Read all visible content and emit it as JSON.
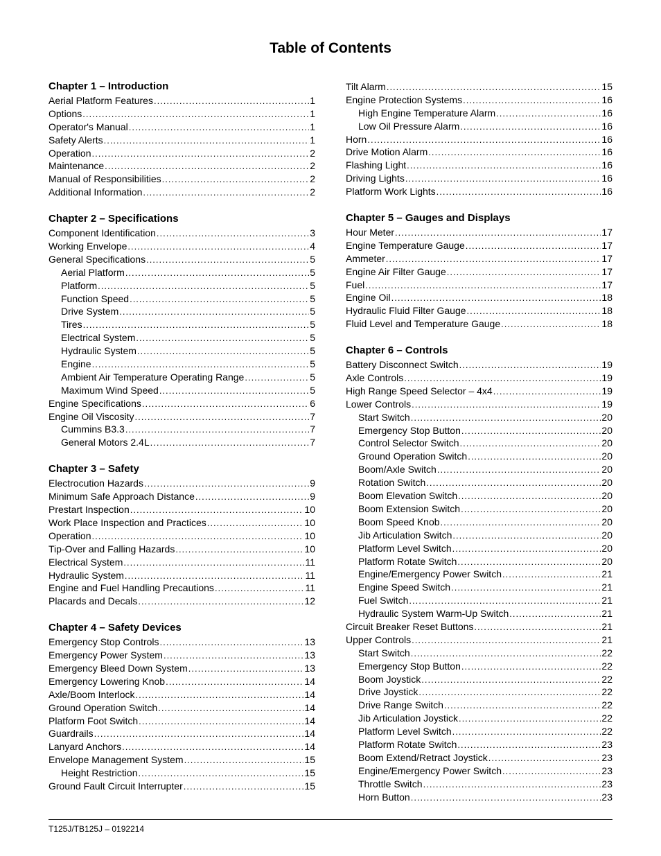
{
  "title": "Table of Contents",
  "footer": "T125J/TB125J – 0192214",
  "left": [
    {
      "type": "heading",
      "text": "Chapter 1 – Introduction",
      "first": true
    },
    {
      "type": "entry",
      "label": "Aerial Platform Features",
      "page": "1",
      "indent": 0
    },
    {
      "type": "entry",
      "label": "Options",
      "page": "1",
      "indent": 0
    },
    {
      "type": "entry",
      "label": "Operator's Manual",
      "page": "1",
      "indent": 0
    },
    {
      "type": "entry",
      "label": "Safety Alerts",
      "page": "1",
      "indent": 0
    },
    {
      "type": "entry",
      "label": "Operation",
      "page": "2",
      "indent": 0
    },
    {
      "type": "entry",
      "label": "Maintenance",
      "page": "2",
      "indent": 0
    },
    {
      "type": "entry",
      "label": "Manual of Responsibilities",
      "page": "2",
      "indent": 0
    },
    {
      "type": "entry",
      "label": "Additional Information",
      "page": "2",
      "indent": 0
    },
    {
      "type": "heading",
      "text": "Chapter 2 – Specifications"
    },
    {
      "type": "entry",
      "label": "Component Identification",
      "page": "3",
      "indent": 0
    },
    {
      "type": "entry",
      "label": "Working Envelope",
      "page": "4",
      "indent": 0
    },
    {
      "type": "entry",
      "label": "General Specifications",
      "page": "5",
      "indent": 0
    },
    {
      "type": "entry",
      "label": "Aerial Platform",
      "page": "5",
      "indent": 1
    },
    {
      "type": "entry",
      "label": "Platform",
      "page": "5",
      "indent": 1
    },
    {
      "type": "entry",
      "label": "Function Speed",
      "page": "5",
      "indent": 1
    },
    {
      "type": "entry",
      "label": "Drive System",
      "page": "5",
      "indent": 1
    },
    {
      "type": "entry",
      "label": "Tires",
      "page": "5",
      "indent": 1
    },
    {
      "type": "entry",
      "label": "Electrical System",
      "page": "5",
      "indent": 1
    },
    {
      "type": "entry",
      "label": "Hydraulic System",
      "page": "5",
      "indent": 1
    },
    {
      "type": "entry",
      "label": "Engine",
      "page": "5",
      "indent": 1
    },
    {
      "type": "entry",
      "label": "Ambient Air Temperature Operating Range",
      "page": "5",
      "indent": 1
    },
    {
      "type": "entry",
      "label": "Maximum Wind Speed",
      "page": "5",
      "indent": 1
    },
    {
      "type": "entry",
      "label": "Engine Specifications",
      "page": "6",
      "indent": 0
    },
    {
      "type": "entry",
      "label": "Engine Oil Viscosity",
      "page": "7",
      "indent": 0
    },
    {
      "type": "entry",
      "label": "Cummins B3.3",
      "page": "7",
      "indent": 1
    },
    {
      "type": "entry",
      "label": "General Motors 2.4L",
      "page": "7",
      "indent": 1
    },
    {
      "type": "heading",
      "text": "Chapter 3 – Safety"
    },
    {
      "type": "entry",
      "label": "Electrocution Hazards",
      "page": "9",
      "indent": 0
    },
    {
      "type": "entry",
      "label": "Minimum Safe Approach Distance",
      "page": "9",
      "indent": 0
    },
    {
      "type": "entry",
      "label": "Prestart Inspection",
      "page": "10",
      "indent": 0
    },
    {
      "type": "entry",
      "label": "Work Place Inspection and Practices",
      "page": "10",
      "indent": 0
    },
    {
      "type": "entry",
      "label": "Operation",
      "page": "10",
      "indent": 0
    },
    {
      "type": "entry",
      "label": "Tip-Over and Falling Hazards",
      "page": "10",
      "indent": 0
    },
    {
      "type": "entry",
      "label": "Electrical System",
      "page": "11",
      "indent": 0
    },
    {
      "type": "entry",
      "label": "Hydraulic System",
      "page": "11",
      "indent": 0
    },
    {
      "type": "entry",
      "label": "Engine and Fuel Handling Precautions",
      "page": "11",
      "indent": 0
    },
    {
      "type": "entry",
      "label": "Placards and Decals",
      "page": "12",
      "indent": 0
    },
    {
      "type": "heading",
      "text": "Chapter 4 – Safety Devices"
    },
    {
      "type": "entry",
      "label": "Emergency Stop Controls",
      "page": "13",
      "indent": 0
    },
    {
      "type": "entry",
      "label": "Emergency Power System",
      "page": "13",
      "indent": 0
    },
    {
      "type": "entry",
      "label": "Emergency Bleed Down System",
      "page": "13",
      "indent": 0
    },
    {
      "type": "entry",
      "label": "Emergency Lowering Knob",
      "page": "14",
      "indent": 0
    },
    {
      "type": "entry",
      "label": "Axle/Boom Interlock",
      "page": "14",
      "indent": 0
    },
    {
      "type": "entry",
      "label": "Ground Operation Switch",
      "page": "14",
      "indent": 0
    },
    {
      "type": "entry",
      "label": "Platform Foot Switch",
      "page": "14",
      "indent": 0
    },
    {
      "type": "entry",
      "label": "Guardrails",
      "page": "14",
      "indent": 0
    },
    {
      "type": "entry",
      "label": "Lanyard Anchors",
      "page": "14",
      "indent": 0
    },
    {
      "type": "entry",
      "label": "Envelope Management System",
      "page": "15",
      "indent": 0
    },
    {
      "type": "entry",
      "label": "Height Restriction",
      "page": "15",
      "indent": 1
    },
    {
      "type": "entry",
      "label": "Ground Fault Circuit Interrupter",
      "page": "15",
      "indent": 0
    }
  ],
  "right": [
    {
      "type": "entry",
      "label": "Tilt Alarm",
      "page": "15",
      "indent": 0
    },
    {
      "type": "entry",
      "label": "Engine Protection Systems",
      "page": "16",
      "indent": 0
    },
    {
      "type": "entry",
      "label": "High Engine Temperature Alarm",
      "page": "16",
      "indent": 1
    },
    {
      "type": "entry",
      "label": "Low Oil Pressure Alarm",
      "page": "16",
      "indent": 1
    },
    {
      "type": "entry",
      "label": "Horn",
      "page": "16",
      "indent": 0
    },
    {
      "type": "entry",
      "label": "Drive Motion Alarm",
      "page": "16",
      "indent": 0
    },
    {
      "type": "entry",
      "label": "Flashing Light",
      "page": "16",
      "indent": 0
    },
    {
      "type": "entry",
      "label": "Driving Lights",
      "page": "16",
      "indent": 0
    },
    {
      "type": "entry",
      "label": "Platform Work Lights",
      "page": "16",
      "indent": 0
    },
    {
      "type": "heading",
      "text": "Chapter 5 – Gauges and Displays"
    },
    {
      "type": "entry",
      "label": "Hour Meter",
      "page": "17",
      "indent": 0
    },
    {
      "type": "entry",
      "label": "Engine Temperature Gauge",
      "page": "17",
      "indent": 0
    },
    {
      "type": "entry",
      "label": "Ammeter",
      "page": "17",
      "indent": 0
    },
    {
      "type": "entry",
      "label": "Engine Air Filter Gauge",
      "page": "17",
      "indent": 0
    },
    {
      "type": "entry",
      "label": "Fuel",
      "page": "17",
      "indent": 0
    },
    {
      "type": "entry",
      "label": "Engine Oil",
      "page": "18",
      "indent": 0
    },
    {
      "type": "entry",
      "label": "Hydraulic Fluid Filter Gauge",
      "page": "18",
      "indent": 0
    },
    {
      "type": "entry",
      "label": "Fluid Level and Temperature Gauge",
      "page": "18",
      "indent": 0
    },
    {
      "type": "heading",
      "text": "Chapter 6 – Controls"
    },
    {
      "type": "entry",
      "label": "Battery Disconnect Switch",
      "page": "19",
      "indent": 0
    },
    {
      "type": "entry",
      "label": "Axle Controls",
      "page": "19",
      "indent": 0
    },
    {
      "type": "entry",
      "label": "High Range Speed Selector – 4x4",
      "page": "19",
      "indent": 0
    },
    {
      "type": "entry",
      "label": "Lower Controls",
      "page": "19",
      "indent": 0
    },
    {
      "type": "entry",
      "label": "Start Switch",
      "page": "20",
      "indent": 1
    },
    {
      "type": "entry",
      "label": "Emergency Stop Button",
      "page": "20",
      "indent": 1
    },
    {
      "type": "entry",
      "label": "Control Selector Switch",
      "page": "20",
      "indent": 1
    },
    {
      "type": "entry",
      "label": "Ground Operation Switch",
      "page": "20",
      "indent": 1
    },
    {
      "type": "entry",
      "label": "Boom/Axle Switch",
      "page": "20",
      "indent": 1
    },
    {
      "type": "entry",
      "label": "Rotation Switch",
      "page": "20",
      "indent": 1
    },
    {
      "type": "entry",
      "label": "Boom Elevation Switch",
      "page": "20",
      "indent": 1
    },
    {
      "type": "entry",
      "label": "Boom Extension Switch",
      "page": "20",
      "indent": 1
    },
    {
      "type": "entry",
      "label": "Boom Speed Knob",
      "page": "20",
      "indent": 1
    },
    {
      "type": "entry",
      "label": "Jib Articulation Switch",
      "page": "20",
      "indent": 1
    },
    {
      "type": "entry",
      "label": "Platform Level Switch",
      "page": "20",
      "indent": 1
    },
    {
      "type": "entry",
      "label": "Platform Rotate Switch",
      "page": "20",
      "indent": 1
    },
    {
      "type": "entry",
      "label": "Engine/Emergency Power Switch",
      "page": "21",
      "indent": 1
    },
    {
      "type": "entry",
      "label": "Engine Speed Switch",
      "page": "21",
      "indent": 1
    },
    {
      "type": "entry",
      "label": "Fuel Switch",
      "page": "21",
      "indent": 1
    },
    {
      "type": "entry",
      "label": "Hydraulic System Warm-Up Switch",
      "page": "21",
      "indent": 1
    },
    {
      "type": "entry",
      "label": "Circuit Breaker Reset Buttons",
      "page": "21",
      "indent": 0
    },
    {
      "type": "entry",
      "label": "Upper Controls",
      "page": "21",
      "indent": 0
    },
    {
      "type": "entry",
      "label": "Start Switch",
      "page": "22",
      "indent": 1
    },
    {
      "type": "entry",
      "label": "Emergency Stop Button",
      "page": "22",
      "indent": 1
    },
    {
      "type": "entry",
      "label": "Boom Joystick",
      "page": "22",
      "indent": 1
    },
    {
      "type": "entry",
      "label": "Drive Joystick",
      "page": "22",
      "indent": 1
    },
    {
      "type": "entry",
      "label": "Drive Range Switch",
      "page": "22",
      "indent": 1
    },
    {
      "type": "entry",
      "label": "Jib Articulation Joystick",
      "page": "22",
      "indent": 1
    },
    {
      "type": "entry",
      "label": "Platform Level Switch",
      "page": "22",
      "indent": 1
    },
    {
      "type": "entry",
      "label": "Platform Rotate Switch",
      "page": "23",
      "indent": 1
    },
    {
      "type": "entry",
      "label": "Boom Extend/Retract Joystick",
      "page": "23",
      "indent": 1
    },
    {
      "type": "entry",
      "label": "Engine/Emergency Power Switch",
      "page": "23",
      "indent": 1
    },
    {
      "type": "entry",
      "label": "Throttle Switch",
      "page": "23",
      "indent": 1
    },
    {
      "type": "entry",
      "label": "Horn Button",
      "page": "23",
      "indent": 1
    }
  ]
}
